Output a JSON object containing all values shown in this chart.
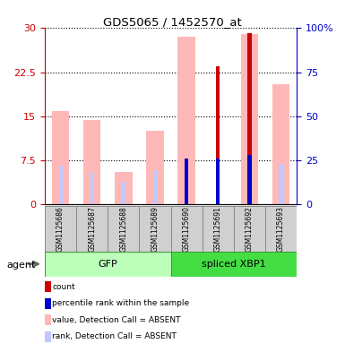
{
  "title": "GDS5065 / 1452570_at",
  "samples": [
    "GSM1125686",
    "GSM1125687",
    "GSM1125688",
    "GSM1125689",
    "GSM1125690",
    "GSM1125691",
    "GSM1125692",
    "GSM1125693"
  ],
  "value_absent": [
    15.8,
    14.4,
    5.5,
    12.5,
    28.5,
    null,
    29.0,
    20.5
  ],
  "rank_absent": [
    6.5,
    5.5,
    3.8,
    5.8,
    null,
    null,
    null,
    6.8
  ],
  "count": [
    null,
    null,
    null,
    null,
    null,
    23.5,
    29.2,
    null
  ],
  "percentile_rank_pct": [
    null,
    null,
    null,
    null,
    26.0,
    26.0,
    28.0,
    null
  ],
  "ylim_left": [
    0,
    30
  ],
  "yticks_left": [
    0,
    7.5,
    15,
    22.5,
    30
  ],
  "ytick_labels_left": [
    "0",
    "7.5",
    "15",
    "22.5",
    "30"
  ],
  "yticks_right": [
    0,
    25,
    50,
    75,
    100
  ],
  "ytick_labels_right": [
    "0",
    "25",
    "50",
    "75",
    "100%"
  ],
  "color_count": "#cc0000",
  "color_percentile": "#0000cc",
  "color_value_absent": "#ffb8b8",
  "color_rank_absent": "#c0c8ff",
  "color_gfp_light": "#ccffcc",
  "color_gfp_dark": "#44dd44",
  "color_xbp1_light": "#ccffcc",
  "color_xbp1_dark": "#44dd44",
  "color_axis_left": "#cc0000",
  "color_axis_right": "#0000cc",
  "wide_bar_width": 0.55,
  "narrow_bar_width": 0.12,
  "grid_linestyle": "dotted"
}
